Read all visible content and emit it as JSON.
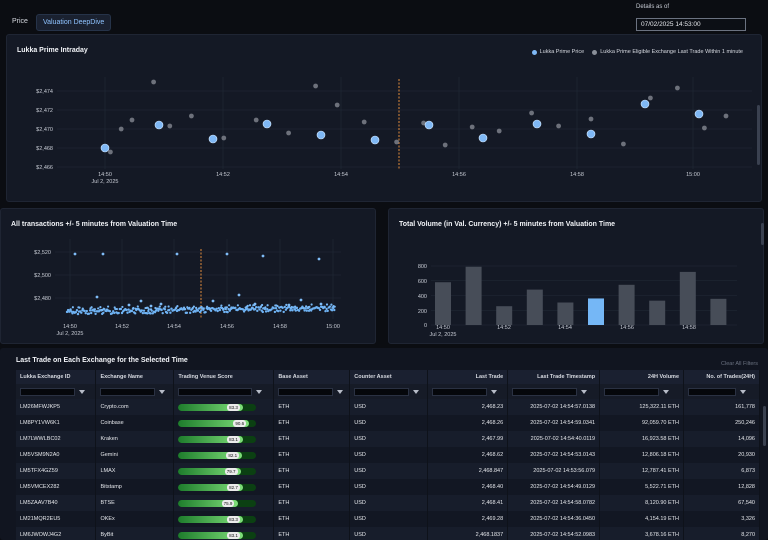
{
  "tabs": [
    {
      "label": "Price",
      "active": false
    },
    {
      "label": "Valuation DeepDive",
      "active": true
    }
  ],
  "details": {
    "label": "Details as of",
    "value": "07/02/2025 14:53:00"
  },
  "intraday": {
    "title": "Lukka Prime Intraday",
    "legend": [
      {
        "label": "Lukka Prime Price",
        "color": "#7fb8f5"
      },
      {
        "label": "Lukka Prime Eligible Exchange Last Trade Within 1 minute",
        "color": "#8a8f99"
      }
    ],
    "y_ticks": [
      "$2,474",
      "$2,472",
      "$2,470",
      "$2,468",
      "$2,466"
    ],
    "x_ticks": [
      "14:50",
      "14:52",
      "14:54",
      "14:56",
      "14:58",
      "15:00"
    ],
    "x_sub": "Jul 2, 2025"
  },
  "transactions": {
    "title": "All transactions +/- 5 minutes from Valuation Time",
    "y_ticks": [
      "$2,520",
      "$2,500",
      "$2,480"
    ],
    "x_ticks": [
      "14:50",
      "14:52",
      "14:54",
      "14:56",
      "14:58",
      "15:00"
    ],
    "x_sub": "Jul 2, 2025"
  },
  "volume": {
    "title": "Total Volume (in Val. Currency) +/- 5 minutes from Valuation Time",
    "y_ticks": [
      "800",
      "600",
      "400",
      "200",
      "0"
    ],
    "x_ticks": [
      "14:50",
      "14:52",
      "14:54",
      "14:56",
      "14:58"
    ],
    "x_sub": "Jul 2, 2025"
  },
  "chart_data": [
    {
      "type": "scatter",
      "title": "Lukka Prime Intraday",
      "ylim": [
        2465.5,
        2475
      ],
      "xlim_minutes": [
        14.833,
        15.15
      ],
      "series": [
        {
          "name": "Lukka Prime Price",
          "x": [
            0,
            1,
            2,
            3,
            4,
            5,
            6,
            7,
            8,
            9,
            10,
            11
          ],
          "values": [
            2467.6,
            2469.9,
            2468.5,
            2470.0,
            2468.9,
            2468.4,
            2469.9,
            2468.6,
            2470.0,
            2469.0,
            2472.0,
            2471.0
          ]
        },
        {
          "name": "Lukka Prime Eligible Exchange Last Trade Within 1 minute",
          "x": [
            0.1,
            0.3,
            0.5,
            0.9,
            1.2,
            1.6,
            2.2,
            2.8,
            3.4,
            3.9,
            4.3,
            4.8,
            5.4,
            5.9,
            6.3,
            6.8,
            7.3,
            7.9,
            8.4,
            9.0,
            9.6,
            10.1,
            10.6,
            11.1,
            11.5
          ],
          "values": [
            2467.2,
            2469.5,
            2470.4,
            2474.2,
            2469.8,
            2470.8,
            2468.6,
            2470.4,
            2469.1,
            2473.8,
            2471.9,
            2470.2,
            2468.2,
            2470.1,
            2467.9,
            2469.7,
            2469.3,
            2471.1,
            2469.8,
            2470.5,
            2468.0,
            2472.6,
            2473.6,
            2469.6,
            2470.8
          ]
        }
      ],
      "valuation_time": "14:55"
    },
    {
      "type": "scatter",
      "title": "All transactions +/- 5 minutes from Valuation Time",
      "ylim": [
        2472,
        2526
      ],
      "valuation_time": "14:55"
    },
    {
      "type": "bar",
      "title": "Total Volume (in Val. Currency) +/- 5 minutes from Valuation Time",
      "ylim": [
        0,
        850
      ],
      "values": [
        580,
        790,
        255,
        480,
        305,
        360,
        545,
        330,
        720,
        355
      ],
      "highlight_index": 5,
      "colors": {
        "default": "#474d58",
        "highlight": "#75b7f6"
      }
    }
  ],
  "table": {
    "title": "Last Trade on Each Exchange for the Selected Time",
    "clear_label": "Clear All Filters",
    "headers": [
      "Lukka Exchange ID",
      "Exchange Name",
      "Trading Venue Score",
      "Base Asset",
      "Counter Asset",
      "Last Trade",
      "Last Trade Timestamp",
      "24H Volume",
      "No. of Trades(24H)"
    ],
    "rows": [
      {
        "id": "LM26MFWJKP5",
        "name": "Crypto.com",
        "score": "83.3",
        "score_pct": 0.83,
        "base": "ETH",
        "counter": "USD",
        "last": "2,468.23",
        "ts": "2025-07-02 14:54:57.0138",
        "vol": "125,322.11 ETH",
        "trades": "161,778"
      },
      {
        "id": "LM8PY1VW6K1",
        "name": "Coinbase",
        "score": "90.6",
        "score_pct": 0.91,
        "base": "ETH",
        "counter": "USD",
        "last": "2,468.26",
        "ts": "2025-07-02 14:54:59.0341",
        "vol": "92,059.70 ETH",
        "trades": "250,246"
      },
      {
        "id": "LM7LWWLBC02",
        "name": "Kraken",
        "score": "83.1",
        "score_pct": 0.83,
        "base": "ETH",
        "counter": "USD",
        "last": "2,467.99",
        "ts": "2025-07-02 14:54:40.0119",
        "vol": "16,923.58 ETH",
        "trades": "14,096"
      },
      {
        "id": "LM5VSM9N2A0",
        "name": "Gemini",
        "score": "82.1",
        "score_pct": 0.82,
        "base": "ETH",
        "counter": "USD",
        "last": "2,468.62",
        "ts": "2025-07-02 14:54:53.0143",
        "vol": "12,806.18 ETH",
        "trades": "20,930"
      },
      {
        "id": "LM5TFX4GZ59",
        "name": "LMAX",
        "score": "79.7",
        "score_pct": 0.8,
        "base": "ETH",
        "counter": "USD",
        "last": "2,468.847",
        "ts": "2025-07-02 14:53:56.079",
        "vol": "12,787.41 ETH",
        "trades": "6,873"
      },
      {
        "id": "LM5VMCEX282",
        "name": "Bitstamp",
        "score": "82.7",
        "score_pct": 0.83,
        "base": "ETH",
        "counter": "USD",
        "last": "2,468.40",
        "ts": "2025-07-02 14:54:49.0129",
        "vol": "5,522.71 ETH",
        "trades": "12,828"
      },
      {
        "id": "LM5ZAAV7B40",
        "name": "BTSE",
        "score": "75.9",
        "score_pct": 0.76,
        "base": "ETH",
        "counter": "USD",
        "last": "2,468.41",
        "ts": "2025-07-02 14:54:58.0782",
        "vol": "8,120.90 ETH",
        "trades": "67,540"
      },
      {
        "id": "LM21MQR2EU5",
        "name": "OKEx",
        "score": "83.3",
        "score_pct": 0.83,
        "base": "ETH",
        "counter": "USD",
        "last": "2,469.28",
        "ts": "2025-07-02 14:54:36.0450",
        "vol": "4,154.19 ETH",
        "trades": "3,326"
      },
      {
        "id": "LM6JWOWJ4G2",
        "name": "ByBit",
        "score": "83.1",
        "score_pct": 0.83,
        "base": "ETH",
        "counter": "USD",
        "last": "2,468.1837",
        "ts": "2025-07-02 14:54:52.0983",
        "vol": "3,678.16 ETH",
        "trades": "8,270"
      }
    ]
  }
}
